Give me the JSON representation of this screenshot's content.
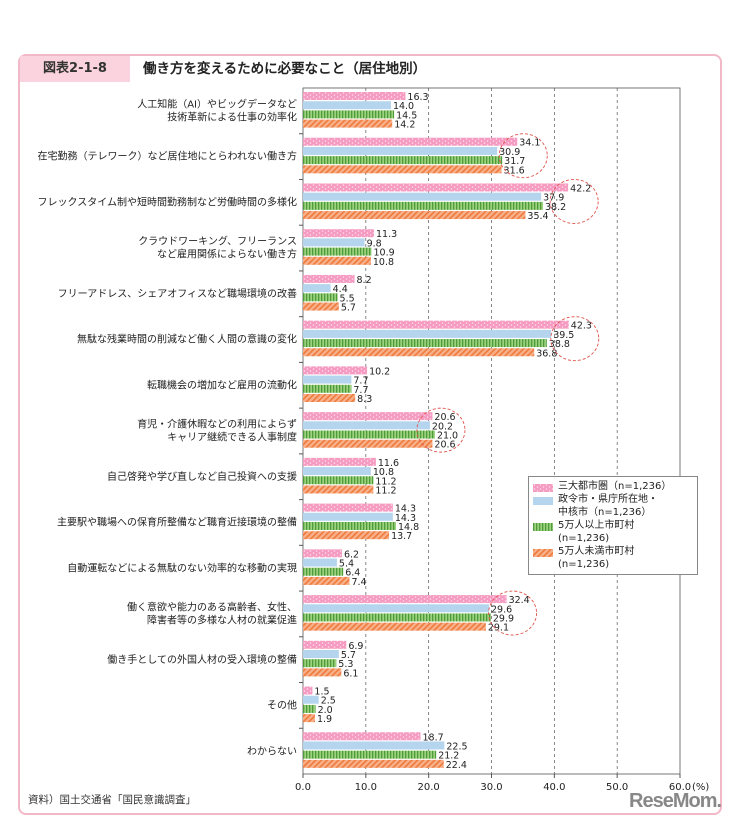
{
  "figure_id": "図表2-1-8",
  "source": "資料）国土交通省「国民意識調査」",
  "logo": "ReseMom",
  "chart_data": {
    "type": "bar",
    "orientation": "horizontal",
    "title": "働き方を変えるために必要なこと（居住地別）",
    "xlabel": "",
    "unit_label": "(%)",
    "xlim": [
      0,
      60
    ],
    "xticks": [
      "0.0",
      "10.0",
      "20.0",
      "30.0",
      "40.0",
      "50.0",
      "60.0"
    ],
    "grid": "vertical dashed",
    "legend_position": "right-middle",
    "categories": [
      [
        "人工知能（AI）やビッグデータなど",
        "技術革新による仕事の効率化"
      ],
      [
        "在宅勤務（テレワーク）など居住地にとらわれない働き方"
      ],
      [
        "フレックスタイム制や短時間勤務制など労働時間の多様化"
      ],
      [
        "クラウドワーキング、フリーランス",
        "など雇用関係によらない働き方"
      ],
      [
        "フリーアドレス、シェアオフィスなど職場環境の改善"
      ],
      [
        "無駄な残業時間の削減など働く人間の意識の変化"
      ],
      [
        "転職機会の増加など雇用の流動化"
      ],
      [
        "育児・介護休暇などの利用によらず",
        "キャリア継続できる人事制度"
      ],
      [
        "自己啓発や学び直しなど自己投資への支援"
      ],
      [
        "主要駅や職場への保育所整備など職育近接環境の整備"
      ],
      [
        "自動運転などによる無駄のない効率的な移動の実現"
      ],
      [
        "働く意欲や能力のある高齢者、女性、",
        "障害者等の多様な人材の就業促進"
      ],
      [
        "働き手としての外国人材の受入環境の整備"
      ],
      [
        "その他"
      ],
      [
        "わからない"
      ]
    ],
    "highlighted_categories": [
      1,
      2,
      5,
      7,
      11
    ],
    "series": [
      {
        "name": "三大都市圏（n=1,236）",
        "color": "#f59ac0",
        "values": [
          16.3,
          34.1,
          42.2,
          11.3,
          8.2,
          42.3,
          10.2,
          20.6,
          11.6,
          14.3,
          6.2,
          32.4,
          6.9,
          1.5,
          18.7
        ]
      },
      {
        "name": "政令市・県庁所在地・中核市（n=1,236）",
        "color": "#b5d5ef",
        "values": [
          14.0,
          30.9,
          37.9,
          9.8,
          4.4,
          39.5,
          7.7,
          20.2,
          10.8,
          14.3,
          5.4,
          29.6,
          5.7,
          2.5,
          22.5
        ]
      },
      {
        "name": "5万人以上市町村（n=1,236）",
        "color": "#7cc063",
        "values": [
          14.5,
          31.7,
          38.2,
          10.9,
          5.5,
          38.8,
          7.7,
          21.0,
          11.2,
          14.8,
          6.4,
          29.9,
          5.3,
          2.0,
          21.2
        ]
      },
      {
        "name": "5万人未満市町村（n=1,236）",
        "color": "#f5955e",
        "values": [
          14.2,
          31.6,
          35.4,
          10.8,
          5.7,
          36.8,
          8.3,
          20.6,
          11.2,
          13.7,
          7.4,
          29.1,
          6.1,
          1.9,
          22.4
        ]
      }
    ],
    "legend_lines": [
      [
        "三大都市圏（n=1,236）"
      ],
      [
        "政令市・県庁所在地・",
        "中核市（n=1,236）"
      ],
      [
        "5万人以上市町村",
        "(n=1,236)"
      ],
      [
        "5万人未満市町村",
        "(n=1,236)"
      ]
    ]
  }
}
